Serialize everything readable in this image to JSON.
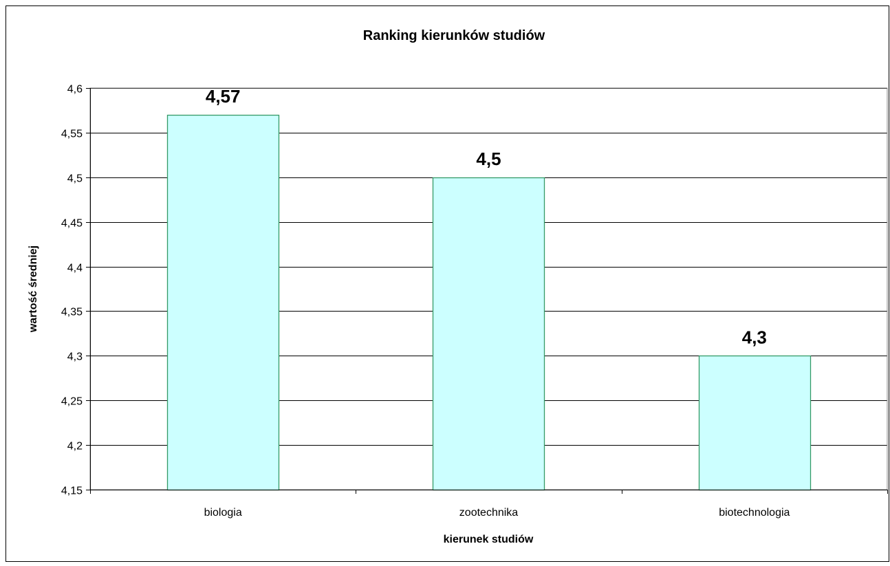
{
  "chart_data": {
    "type": "bar",
    "title": "Ranking kierunków studiów",
    "xlabel": "kierunek studiów",
    "ylabel": "wartość średniej",
    "categories": [
      "biologia",
      "zootechnika",
      "biotechnologia"
    ],
    "values": [
      4.57,
      4.5,
      4.3
    ],
    "data_labels": [
      "4,57",
      "4,5",
      "4,3"
    ],
    "ylim": [
      4.15,
      4.6
    ],
    "y_ticks": [
      4.15,
      4.2,
      4.25,
      4.3,
      4.35,
      4.4,
      4.45,
      4.5,
      4.55,
      4.6
    ],
    "y_tick_labels": [
      "4,15",
      "4,2",
      "4,25",
      "4,3",
      "4,35",
      "4,4",
      "4,45",
      "4,5",
      "4,55",
      "4,6"
    ],
    "grid": true,
    "legend": "none",
    "colors": {
      "bar_fill": "#CCFFFF",
      "bar_stroke": "#339966",
      "gridline": "#000000",
      "plot_border": "#808080",
      "frame": "#000000"
    }
  }
}
